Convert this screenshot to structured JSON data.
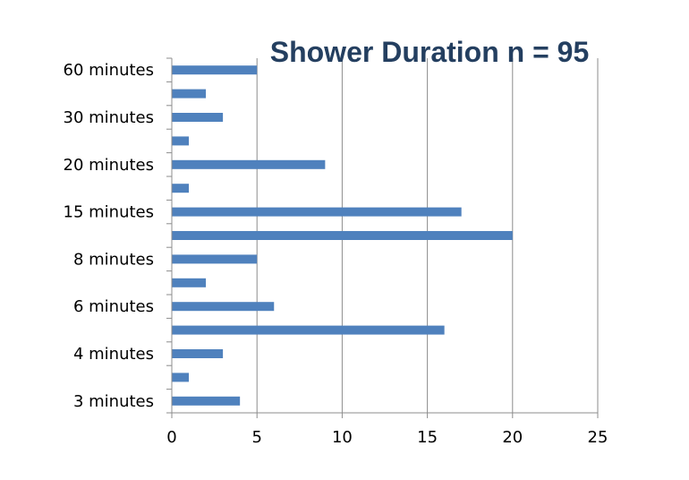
{
  "chart_data": {
    "type": "bar",
    "orientation": "horizontal",
    "title": "Shower Duration n = 95",
    "xlabel": "",
    "ylabel": "",
    "xlim": [
      0,
      25
    ],
    "x_ticks": [
      0,
      5,
      10,
      15,
      20,
      25
    ],
    "grid": true,
    "legend": "none",
    "bar_color": "#4f81bd",
    "categories_bottom_to_top": [
      "3 minutes",
      "",
      "4 minutes",
      "",
      "6 minutes",
      "",
      "8 minutes",
      "",
      "15 minutes",
      "",
      "20 minutes",
      "",
      "30 minutes",
      "",
      "60 minutes"
    ],
    "values_bottom_to_top": [
      4,
      1,
      3,
      16,
      6,
      2,
      5,
      20,
      17,
      1,
      9,
      1,
      3,
      2,
      5
    ]
  }
}
